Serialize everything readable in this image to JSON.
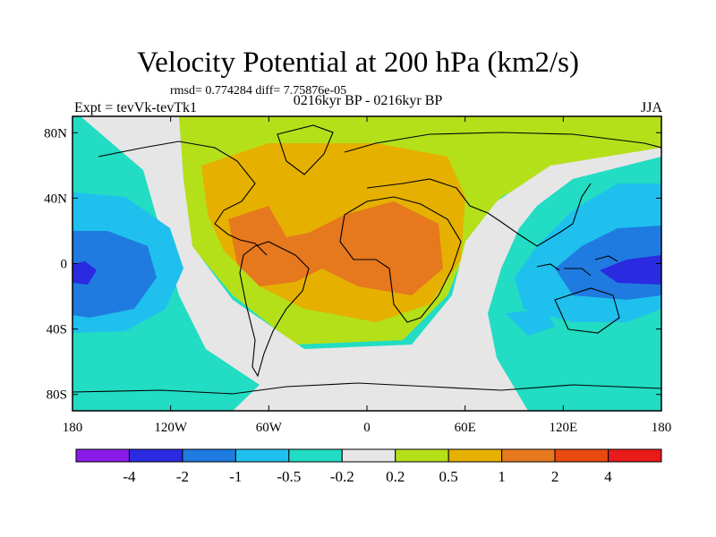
{
  "chart_data": {
    "type": "heatmap",
    "title": "Velocity Potential at 200 hPa (km2/s)",
    "stats": "rmsd= 0.774284 diff= 7.75876e-05",
    "left_label": "Expt = tevVk-tevTk1",
    "center_label": "0216kyr BP - 0216kyr BP",
    "right_label": "JJA",
    "x_ticks": [
      {
        "value": -180,
        "label": "180"
      },
      {
        "value": -120,
        "label": "120W"
      },
      {
        "value": -60,
        "label": "60W"
      },
      {
        "value": 0,
        "label": "0"
      },
      {
        "value": 60,
        "label": "60E"
      },
      {
        "value": 120,
        "label": "120E"
      },
      {
        "value": 180,
        "label": "180"
      }
    ],
    "y_ticks": [
      {
        "value": 80,
        "label": "80N"
      },
      {
        "value": 40,
        "label": "40N"
      },
      {
        "value": 0,
        "label": "0"
      },
      {
        "value": -40,
        "label": "40S"
      },
      {
        "value": -80,
        "label": "80S"
      }
    ],
    "xlim": [
      -180,
      180
    ],
    "ylim": [
      -90,
      90
    ],
    "colorbar": {
      "levels": [
        "-4",
        "-2",
        "-1",
        "-0.5",
        "-0.2",
        "0.2",
        "0.5",
        "1",
        "2",
        "4"
      ],
      "colors": [
        "#8a1be6",
        "#2a2ae0",
        "#1f7be0",
        "#1fc0ee",
        "#22dcc3",
        "#e6e6e6",
        "#b4e01a",
        "#e6b000",
        "#e6781e",
        "#e84a10",
        "#e81a1a"
      ]
    },
    "field": {
      "centers": [
        {
          "name": "positive-max-atlantic-africa",
          "lon": 5,
          "lat": 10,
          "level": "2"
        },
        {
          "name": "negative-min-west-pacific",
          "lon": 160,
          "lat": 0,
          "level": "-4"
        },
        {
          "name": "negative-min-central-pacific",
          "lon": -175,
          "lat": 0,
          "level": "-2"
        }
      ]
    }
  }
}
